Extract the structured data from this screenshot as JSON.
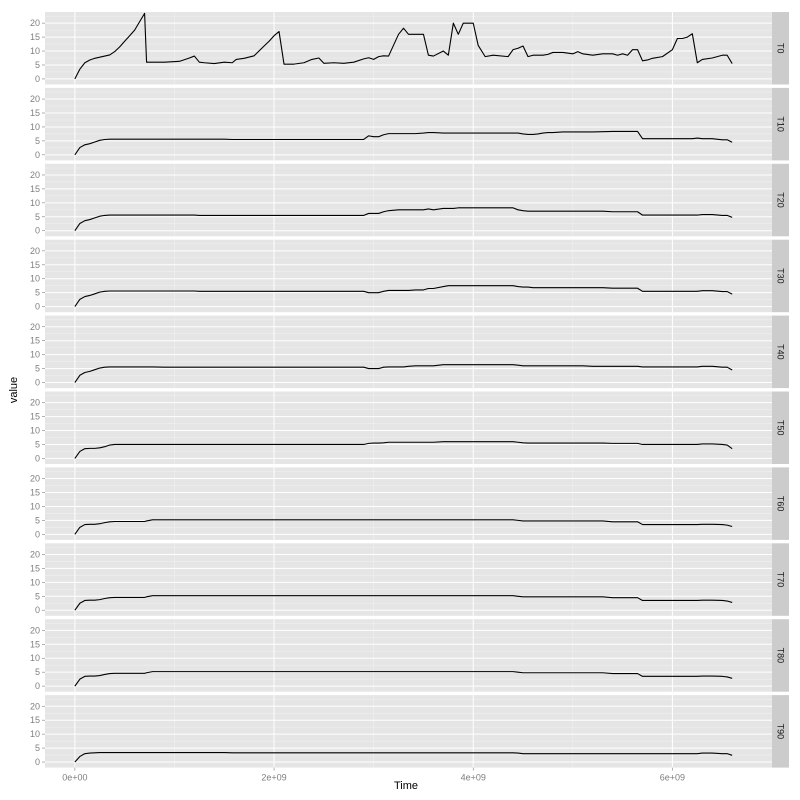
{
  "chart_data": {
    "type": "line",
    "xlabel": "Time",
    "ylabel": "value",
    "xlim": [
      -300000000,
      7000000000
    ],
    "ylim": [
      -2,
      24
    ],
    "x_ticks": [
      0,
      2000000000,
      4000000000,
      6000000000
    ],
    "x_tick_labels": [
      "0e+00",
      "2e+09",
      "4e+09",
      "6e+09"
    ],
    "y_ticks": [
      0,
      5,
      10,
      15,
      20
    ],
    "y_tick_labels": [
      "0",
      "5",
      "10",
      "15",
      "20"
    ],
    "grid": true,
    "facet_layout": "rows",
    "colors": {
      "panel_bg": "#e5e5e5",
      "grid_major": "#ffffff",
      "grid_minor": "#f2f2f2",
      "strip_bg": "#cccccc",
      "line": "#000000"
    },
    "x": [
      0,
      50000000,
      100000000,
      150000000,
      200000000,
      250000000,
      300000000,
      350000000,
      400000000,
      450000000,
      500000000,
      550000000,
      600000000,
      650000000,
      700000000,
      720000000,
      780000000,
      900000000,
      1050000000,
      1150000000,
      1200000000,
      1250000000,
      1300000000,
      1400000000,
      1500000000,
      1580000000,
      1620000000,
      1700000000,
      1800000000,
      1900000000,
      1950000000,
      2000000000,
      2050000000,
      2100000000,
      2200000000,
      2300000000,
      2380000000,
      2450000000,
      2500000000,
      2600000000,
      2700000000,
      2800000000,
      2900000000,
      2950000000,
      3000000000,
      3050000000,
      3100000000,
      3150000000,
      3250000000,
      3300000000,
      3350000000,
      3420000000,
      3500000000,
      3550000000,
      3600000000,
      3700000000,
      3750000000,
      3800000000,
      3850000000,
      3900000000,
      3950000000,
      4000000000,
      4050000000,
      4120000000,
      4200000000,
      4350000000,
      4400000000,
      4450000000,
      4500000000,
      4550000000,
      4600000000,
      4650000000,
      4700000000,
      4750000000,
      4800000000,
      4900000000,
      5000000000,
      5050000000,
      5100000000,
      5200000000,
      5300000000,
      5400000000,
      5450000000,
      5500000000,
      5550000000,
      5600000000,
      5650000000,
      5700000000,
      5750000000,
      5800000000,
      5900000000,
      6000000000,
      6050000000,
      6100000000,
      6150000000,
      6200000000,
      6250000000,
      6300000000,
      6400000000,
      6500000000,
      6550000000,
      6600000000
    ],
    "series": [
      {
        "name": "T0",
        "values": [
          0,
          3.5,
          5.8,
          6.8,
          7.4,
          7.8,
          8.2,
          8.6,
          9.8,
          11.5,
          13.5,
          15.5,
          17.5,
          20.5,
          23.5,
          6.0,
          6.0,
          6.0,
          6.3,
          7.5,
          8.2,
          6.0,
          5.8,
          5.5,
          6.0,
          5.8,
          7.0,
          7.4,
          8.3,
          11.8,
          13.5,
          15.5,
          17.0,
          5.3,
          5.3,
          5.8,
          7.0,
          7.5,
          5.6,
          5.8,
          5.6,
          6.0,
          7.2,
          7.6,
          7.0,
          8.0,
          8.3,
          8.2,
          16.0,
          18.2,
          16.0,
          16.0,
          16.0,
          8.5,
          8.2,
          10.0,
          8.5,
          20.0,
          16.0,
          20.0,
          20.0,
          20.0,
          12.0,
          8.0,
          8.5,
          8.0,
          10.5,
          11.0,
          11.8,
          8.0,
          8.5,
          8.5,
          8.5,
          8.8,
          9.5,
          9.5,
          9.0,
          9.8,
          9.0,
          8.5,
          9.0,
          9.0,
          8.5,
          9.0,
          8.5,
          10.5,
          10.5,
          6.5,
          6.8,
          7.4,
          8.0,
          10.5,
          14.5,
          14.5,
          15.0,
          16.2,
          5.8,
          7.0,
          7.5,
          8.5,
          8.5,
          5.5
        ]
      },
      {
        "name": "T10",
        "values": [
          0,
          2.6,
          3.6,
          4.0,
          4.6,
          5.2,
          5.5,
          5.6,
          5.6,
          5.6,
          5.6,
          5.6,
          5.6,
          5.6,
          5.6,
          5.6,
          5.6,
          5.6,
          5.6,
          5.6,
          5.6,
          5.6,
          5.6,
          5.6,
          5.6,
          5.5,
          5.5,
          5.5,
          5.5,
          5.5,
          5.5,
          5.5,
          5.5,
          5.5,
          5.5,
          5.5,
          5.5,
          5.5,
          5.5,
          5.5,
          5.5,
          5.5,
          5.5,
          6.8,
          6.5,
          6.5,
          7.2,
          7.6,
          7.6,
          7.6,
          7.6,
          7.6,
          7.8,
          8.0,
          8.0,
          7.8,
          7.8,
          7.8,
          7.8,
          7.8,
          7.8,
          7.8,
          7.8,
          7.8,
          7.8,
          7.8,
          7.8,
          7.8,
          7.5,
          7.3,
          7.3,
          7.5,
          7.8,
          8.0,
          8.0,
          8.2,
          8.2,
          8.2,
          8.2,
          8.2,
          8.3,
          8.4,
          8.4,
          8.4,
          8.4,
          8.4,
          8.4,
          5.8,
          5.8,
          5.8,
          5.8,
          5.8,
          5.8,
          5.8,
          5.8,
          5.8,
          6.0,
          5.8,
          5.8,
          5.4,
          5.4,
          4.5
        ]
      },
      {
        "name": "T20",
        "values": [
          0,
          2.6,
          3.6,
          4.0,
          4.6,
          5.2,
          5.5,
          5.6,
          5.6,
          5.6,
          5.6,
          5.6,
          5.6,
          5.6,
          5.6,
          5.6,
          5.6,
          5.6,
          5.6,
          5.6,
          5.6,
          5.5,
          5.5,
          5.5,
          5.5,
          5.5,
          5.5,
          5.5,
          5.5,
          5.5,
          5.5,
          5.5,
          5.5,
          5.5,
          5.5,
          5.5,
          5.5,
          5.5,
          5.5,
          5.5,
          5.5,
          5.5,
          5.5,
          6.2,
          6.2,
          6.2,
          6.8,
          7.2,
          7.5,
          7.5,
          7.5,
          7.5,
          7.5,
          7.8,
          7.5,
          8.0,
          8.0,
          8.0,
          8.2,
          8.2,
          8.2,
          8.2,
          8.2,
          8.2,
          8.2,
          8.2,
          8.2,
          7.5,
          7.2,
          7.0,
          7.0,
          7.0,
          7.0,
          7.0,
          7.0,
          7.0,
          7.0,
          7.0,
          7.0,
          7.0,
          7.0,
          6.8,
          6.8,
          6.8,
          6.8,
          6.8,
          6.8,
          5.6,
          5.6,
          5.6,
          5.6,
          5.6,
          5.6,
          5.6,
          5.6,
          5.6,
          5.6,
          5.8,
          5.8,
          5.5,
          5.5,
          4.8
        ]
      },
      {
        "name": "T30",
        "values": [
          0,
          2.6,
          3.6,
          4.0,
          4.6,
          5.2,
          5.5,
          5.6,
          5.6,
          5.6,
          5.6,
          5.6,
          5.6,
          5.6,
          5.6,
          5.6,
          5.6,
          5.6,
          5.6,
          5.6,
          5.6,
          5.5,
          5.5,
          5.5,
          5.5,
          5.5,
          5.5,
          5.5,
          5.5,
          5.5,
          5.5,
          5.5,
          5.5,
          5.5,
          5.5,
          5.5,
          5.5,
          5.5,
          5.5,
          5.5,
          5.5,
          5.5,
          5.5,
          5.0,
          5.0,
          5.0,
          5.5,
          5.8,
          5.8,
          5.8,
          5.8,
          6.0,
          6.0,
          6.5,
          6.5,
          7.2,
          7.5,
          7.5,
          7.5,
          7.5,
          7.5,
          7.5,
          7.5,
          7.5,
          7.5,
          7.5,
          7.5,
          7.2,
          7.0,
          7.0,
          6.8,
          6.8,
          6.8,
          6.8,
          6.8,
          6.8,
          6.8,
          6.8,
          6.8,
          6.8,
          6.8,
          6.6,
          6.6,
          6.6,
          6.6,
          6.6,
          6.6,
          5.5,
          5.5,
          5.5,
          5.5,
          5.5,
          5.5,
          5.5,
          5.5,
          5.5,
          5.5,
          5.7,
          5.7,
          5.4,
          5.4,
          4.5
        ]
      },
      {
        "name": "T40",
        "values": [
          0,
          2.6,
          3.6,
          4.0,
          4.6,
          5.2,
          5.5,
          5.6,
          5.6,
          5.6,
          5.6,
          5.6,
          5.6,
          5.6,
          5.6,
          5.6,
          5.6,
          5.5,
          5.5,
          5.5,
          5.5,
          5.5,
          5.5,
          5.5,
          5.5,
          5.5,
          5.5,
          5.5,
          5.5,
          5.5,
          5.5,
          5.5,
          5.5,
          5.5,
          5.5,
          5.5,
          5.5,
          5.5,
          5.5,
          5.5,
          5.5,
          5.5,
          5.5,
          5.0,
          5.0,
          5.0,
          5.5,
          5.6,
          5.6,
          5.6,
          5.8,
          6.0,
          6.0,
          6.0,
          6.0,
          6.4,
          6.4,
          6.4,
          6.4,
          6.4,
          6.4,
          6.4,
          6.4,
          6.4,
          6.4,
          6.4,
          6.4,
          6.2,
          6.0,
          6.0,
          6.0,
          6.0,
          6.0,
          6.0,
          6.0,
          6.0,
          6.0,
          6.0,
          6.0,
          5.8,
          5.8,
          5.8,
          5.8,
          5.8,
          5.8,
          5.8,
          5.8,
          5.6,
          5.6,
          5.6,
          5.6,
          5.6,
          5.6,
          5.6,
          5.6,
          5.6,
          5.6,
          5.8,
          5.8,
          5.5,
          5.5,
          4.5
        ]
      },
      {
        "name": "T50",
        "values": [
          0,
          2.5,
          3.5,
          3.6,
          3.6,
          3.8,
          4.2,
          4.8,
          5.0,
          5.0,
          5.0,
          5.0,
          5.0,
          5.0,
          5.0,
          5.0,
          5.0,
          5.0,
          5.0,
          5.0,
          5.0,
          5.0,
          5.0,
          5.0,
          5.0,
          5.0,
          5.0,
          5.0,
          5.0,
          5.0,
          5.0,
          5.0,
          5.0,
          5.0,
          5.0,
          5.0,
          5.0,
          5.0,
          5.0,
          5.0,
          5.0,
          5.0,
          5.0,
          5.4,
          5.5,
          5.5,
          5.6,
          5.8,
          5.8,
          5.8,
          5.8,
          5.8,
          5.8,
          5.8,
          5.8,
          6.0,
          6.0,
          6.0,
          6.0,
          6.0,
          6.0,
          6.0,
          6.0,
          6.0,
          6.0,
          6.0,
          6.0,
          5.8,
          5.6,
          5.5,
          5.5,
          5.5,
          5.5,
          5.5,
          5.5,
          5.5,
          5.5,
          5.5,
          5.5,
          5.5,
          5.5,
          5.4,
          5.4,
          5.4,
          5.4,
          5.4,
          5.4,
          5.0,
          5.0,
          5.0,
          5.0,
          5.0,
          5.0,
          5.0,
          5.0,
          5.0,
          5.0,
          5.2,
          5.2,
          5.0,
          4.8,
          3.5
        ]
      },
      {
        "name": "T60",
        "values": [
          0,
          2.5,
          3.5,
          3.6,
          3.6,
          3.8,
          4.2,
          4.5,
          4.6,
          4.6,
          4.6,
          4.6,
          4.6,
          4.6,
          4.6,
          4.8,
          5.2,
          5.2,
          5.2,
          5.2,
          5.2,
          5.2,
          5.2,
          5.2,
          5.2,
          5.2,
          5.2,
          5.2,
          5.2,
          5.2,
          5.2,
          5.2,
          5.2,
          5.2,
          5.2,
          5.2,
          5.2,
          5.2,
          5.2,
          5.2,
          5.2,
          5.2,
          5.2,
          5.2,
          5.2,
          5.2,
          5.2,
          5.2,
          5.2,
          5.2,
          5.2,
          5.2,
          5.2,
          5.2,
          5.2,
          5.2,
          5.2,
          5.2,
          5.2,
          5.2,
          5.2,
          5.2,
          5.2,
          5.2,
          5.2,
          5.2,
          5.2,
          5.0,
          4.8,
          4.8,
          4.8,
          4.8,
          4.8,
          4.8,
          4.8,
          4.8,
          4.8,
          4.8,
          4.8,
          4.8,
          4.8,
          4.5,
          4.5,
          4.5,
          4.5,
          4.5,
          4.5,
          3.5,
          3.5,
          3.5,
          3.5,
          3.5,
          3.5,
          3.5,
          3.5,
          3.5,
          3.5,
          3.6,
          3.6,
          3.5,
          3.3,
          2.8
        ]
      },
      {
        "name": "T70",
        "values": [
          0,
          2.5,
          3.5,
          3.6,
          3.6,
          3.8,
          4.2,
          4.5,
          4.6,
          4.6,
          4.6,
          4.6,
          4.6,
          4.6,
          4.6,
          4.8,
          5.2,
          5.2,
          5.2,
          5.2,
          5.2,
          5.2,
          5.2,
          5.2,
          5.2,
          5.2,
          5.2,
          5.2,
          5.2,
          5.2,
          5.2,
          5.2,
          5.2,
          5.2,
          5.2,
          5.2,
          5.2,
          5.2,
          5.2,
          5.2,
          5.2,
          5.2,
          5.2,
          5.2,
          5.2,
          5.2,
          5.2,
          5.2,
          5.2,
          5.2,
          5.2,
          5.2,
          5.2,
          5.2,
          5.2,
          5.2,
          5.2,
          5.2,
          5.2,
          5.2,
          5.2,
          5.2,
          5.2,
          5.2,
          5.2,
          5.2,
          5.2,
          5.0,
          4.8,
          4.8,
          4.8,
          4.8,
          4.8,
          4.8,
          4.8,
          4.8,
          4.8,
          4.8,
          4.8,
          4.8,
          4.8,
          4.5,
          4.5,
          4.5,
          4.5,
          4.5,
          4.5,
          3.5,
          3.5,
          3.5,
          3.5,
          3.5,
          3.5,
          3.5,
          3.5,
          3.5,
          3.5,
          3.6,
          3.6,
          3.5,
          3.3,
          2.8
        ]
      },
      {
        "name": "T80",
        "values": [
          0,
          2.5,
          3.5,
          3.6,
          3.6,
          3.8,
          4.2,
          4.5,
          4.6,
          4.6,
          4.6,
          4.6,
          4.6,
          4.6,
          4.6,
          4.8,
          5.2,
          5.2,
          5.2,
          5.2,
          5.2,
          5.2,
          5.2,
          5.2,
          5.2,
          5.2,
          5.2,
          5.2,
          5.2,
          5.2,
          5.2,
          5.2,
          5.2,
          5.2,
          5.2,
          5.2,
          5.2,
          5.2,
          5.2,
          5.2,
          5.2,
          5.2,
          5.2,
          5.2,
          5.2,
          5.2,
          5.2,
          5.2,
          5.2,
          5.2,
          5.2,
          5.2,
          5.2,
          5.2,
          5.2,
          5.2,
          5.2,
          5.2,
          5.2,
          5.2,
          5.2,
          5.2,
          5.2,
          5.2,
          5.2,
          5.2,
          5.2,
          5.0,
          4.8,
          4.8,
          4.8,
          4.8,
          4.8,
          4.8,
          4.8,
          4.8,
          4.8,
          4.8,
          4.8,
          4.8,
          4.8,
          4.5,
          4.5,
          4.5,
          4.5,
          4.5,
          4.5,
          3.5,
          3.5,
          3.5,
          3.5,
          3.5,
          3.5,
          3.5,
          3.5,
          3.5,
          3.5,
          3.6,
          3.6,
          3.5,
          3.3,
          2.8
        ]
      },
      {
        "name": "T90",
        "values": [
          0,
          2.0,
          3.0,
          3.2,
          3.3,
          3.4,
          3.4,
          3.4,
          3.4,
          3.4,
          3.4,
          3.4,
          3.4,
          3.4,
          3.4,
          3.4,
          3.4,
          3.4,
          3.4,
          3.4,
          3.4,
          3.4,
          3.4,
          3.4,
          3.4,
          3.3,
          3.3,
          3.3,
          3.3,
          3.3,
          3.3,
          3.3,
          3.3,
          3.3,
          3.3,
          3.3,
          3.3,
          3.3,
          3.3,
          3.3,
          3.3,
          3.3,
          3.3,
          3.3,
          3.3,
          3.3,
          3.3,
          3.3,
          3.3,
          3.3,
          3.3,
          3.3,
          3.3,
          3.3,
          3.3,
          3.3,
          3.3,
          3.3,
          3.3,
          3.3,
          3.3,
          3.3,
          3.3,
          3.3,
          3.3,
          3.3,
          3.3,
          3.2,
          3.0,
          3.0,
          3.0,
          3.0,
          3.0,
          3.0,
          3.0,
          3.0,
          3.0,
          3.0,
          3.0,
          3.0,
          3.0,
          3.0,
          3.0,
          3.0,
          3.0,
          3.0,
          3.0,
          3.0,
          3.0,
          3.0,
          3.0,
          3.0,
          3.0,
          3.0,
          3.0,
          3.0,
          3.0,
          3.2,
          3.2,
          3.0,
          3.0,
          2.4
        ]
      }
    ]
  }
}
